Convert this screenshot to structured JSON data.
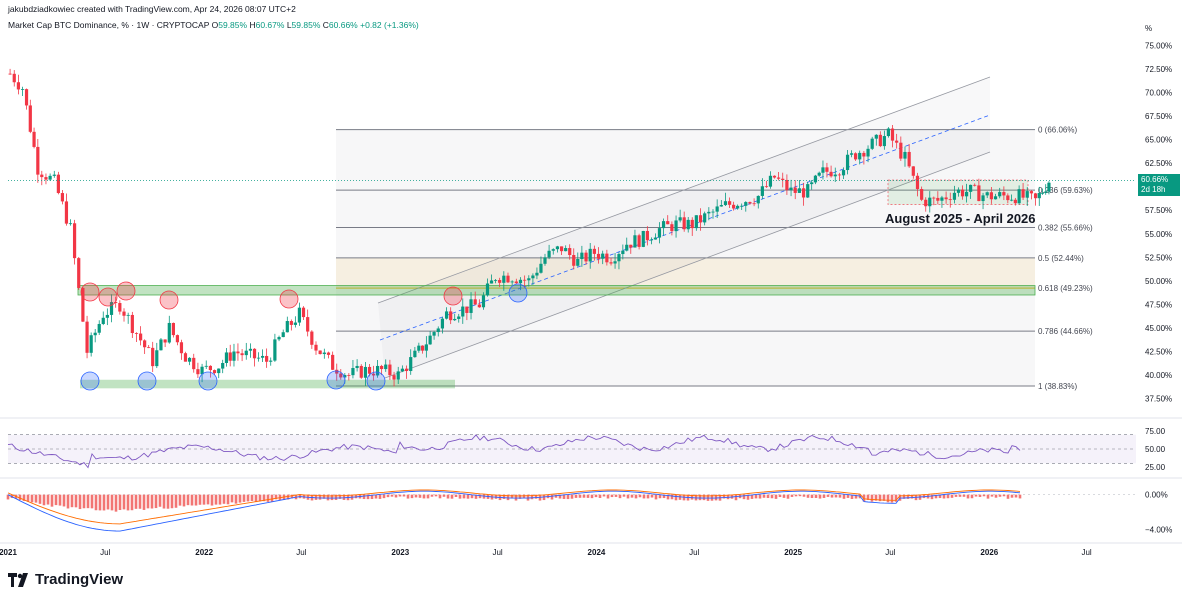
{
  "header": {
    "credit": "jakubdziadkowiec created with TradingView.com, Apr 24, 2026 08:07 UTC+2",
    "symbol": "Market Cap BTC Dominance, % · 1W · CRYPTOCAP",
    "open_label": "O",
    "open": "59.85%",
    "high_label": "H",
    "high": "60.67%",
    "low_label": "L",
    "low": "59.85%",
    "close_label": "C",
    "close": "60.66%",
    "change": "+0.82 (+1.36%)"
  },
  "price_axis": {
    "unit": "%",
    "ticks": [
      "75.00%",
      "72.50%",
      "70.00%",
      "67.50%",
      "65.00%",
      "62.50%",
      "60.00%",
      "57.50%",
      "55.00%",
      "52.50%",
      "50.00%",
      "47.50%",
      "45.00%",
      "42.50%",
      "40.00%",
      "37.50%"
    ],
    "last_price": "60.66%",
    "countdown": "2d 18h"
  },
  "rsi_axis": {
    "ticks": [
      "75.00",
      "50.00",
      "25.00"
    ]
  },
  "macd_axis": {
    "ticks": [
      "0.00%",
      "−4.00%"
    ]
  },
  "time_axis": {
    "ticks": [
      "2021",
      "Jul",
      "2022",
      "Jul",
      "2023",
      "Jul",
      "2024",
      "Jul",
      "2025",
      "Jul",
      "2026",
      "Jul"
    ]
  },
  "fib_levels": [
    {
      "label": "0 (66.06%)",
      "value": 66.06,
      "color": "#787b86"
    },
    {
      "label": "0.236 (59.63%)",
      "value": 59.63,
      "color": "#787b86"
    },
    {
      "label": "0.382 (55.66%)",
      "value": 55.66,
      "color": "#787b86"
    },
    {
      "label": "0.5 (52.44%)",
      "value": 52.44,
      "color": "#787b86"
    },
    {
      "label": "0.618 (49.23%)",
      "value": 49.23,
      "color": "#f5b31c"
    },
    {
      "label": "0.786 (44.66%)",
      "value": 44.66,
      "color": "#787b86"
    },
    {
      "label": "1 (38.83%)",
      "value": 38.83,
      "color": "#787b86"
    }
  ],
  "annotation": "August 2025 - April 2026",
  "brand": "TradingView",
  "colors": {
    "up": "#089981",
    "down": "#f23645",
    "rsi": "#7e57c2",
    "macd": "#2962ff",
    "signal": "#ff6d00",
    "support": "#4caf50"
  },
  "chart_data": {
    "type": "candlestick",
    "title": "Market Cap BTC Dominance, %",
    "interval": "1W",
    "ylim": [
      36.5,
      76
    ],
    "x_range": [
      "2021-01-01",
      "2026-10-01"
    ],
    "series": [
      {
        "name": "BTC Dominance",
        "x": [
          "2021-01",
          "2021-02",
          "2021-03",
          "2021-04",
          "2021-05",
          "2021-06",
          "2021-07",
          "2021-08",
          "2021-09",
          "2021-10",
          "2021-11",
          "2021-12",
          "2022-01",
          "2022-02",
          "2022-03",
          "2022-04",
          "2022-05",
          "2022-06",
          "2022-07",
          "2022-08",
          "2022-09",
          "2022-10",
          "2022-11",
          "2022-12",
          "2023-01",
          "2023-02",
          "2023-03",
          "2023-04",
          "2023-05",
          "2023-06",
          "2023-07",
          "2023-08",
          "2023-09",
          "2023-10",
          "2023-11",
          "2023-12",
          "2024-01",
          "2024-02",
          "2024-03",
          "2024-04",
          "2024-05",
          "2024-06",
          "2024-07",
          "2024-08",
          "2024-09",
          "2024-10",
          "2024-11",
          "2024-12",
          "2025-01",
          "2025-02",
          "2025-03",
          "2025-04",
          "2025-05",
          "2025-06",
          "2025-07",
          "2025-08",
          "2025-09",
          "2025-10",
          "2025-11",
          "2025-12",
          "2026-01",
          "2026-02",
          "2026-03",
          "2026-04"
        ],
        "values": [
          70.5,
          62.0,
          60.5,
          55.5,
          42.5,
          46.5,
          47.5,
          44.5,
          41.5,
          45.0,
          42.0,
          40.5,
          41.0,
          42.5,
          42.0,
          41.5,
          44.5,
          46.5,
          43.0,
          41.0,
          40.0,
          40.5,
          40.5,
          40.0,
          42.0,
          44.0,
          46.5,
          47.0,
          47.5,
          50.5,
          50.5,
          50.0,
          52.5,
          53.5,
          52.0,
          53.0,
          52.5,
          54.0,
          54.5,
          55.5,
          56.0,
          56.0,
          57.0,
          58.0,
          58.5,
          59.0,
          61.0,
          59.5,
          59.5,
          61.5,
          62.0,
          63.5,
          64.5,
          65.5,
          63.0,
          58.5,
          58.5,
          59.5,
          59.5,
          59.0,
          59.0,
          59.0,
          58.5,
          60.66
        ]
      }
    ],
    "support_zones": [
      {
        "name": "",
        "low": 48.5,
        "high": 49.5
      },
      {
        "name": "",
        "low": 38.8,
        "high": 39.5
      }
    ],
    "indicators": {
      "rsi": {
        "levels": [
          70,
          50,
          30
        ],
        "ylim": [
          15,
          85
        ]
      },
      "macd": {
        "ylim": [
          -5,
          1
        ]
      }
    }
  }
}
